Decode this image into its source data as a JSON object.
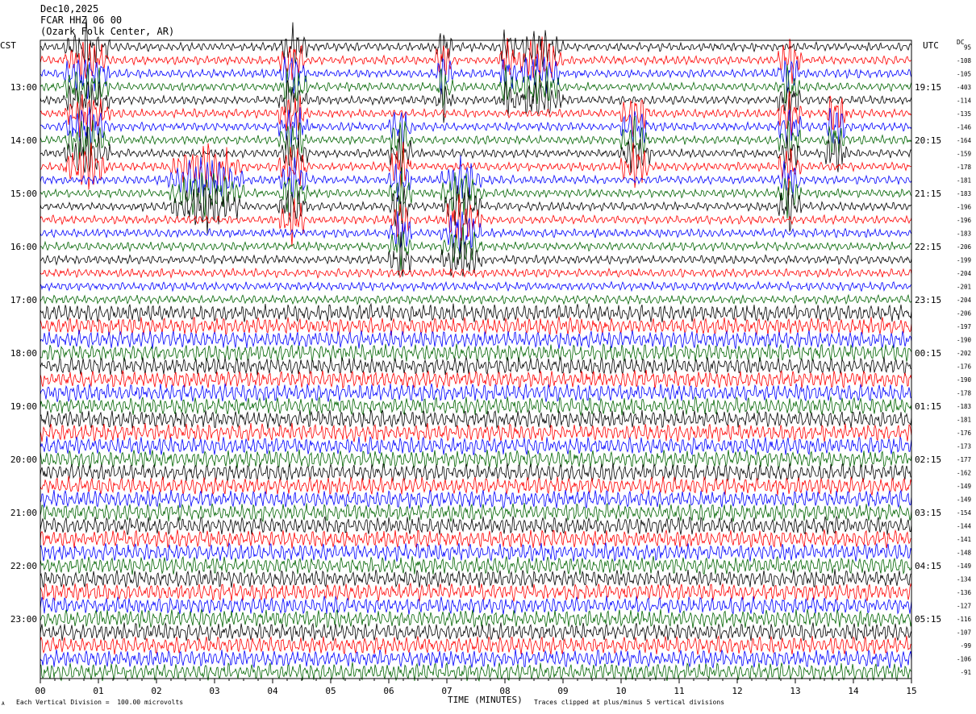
{
  "header": {
    "date": "Dec10,2025",
    "channel": "FCAR HHZ 06 00",
    "location": "(Ozark Folk Center, AR)"
  },
  "axes": {
    "left_title": "CST",
    "right_title": "UTC",
    "far_right_title": "DC",
    "x_title": "TIME (MINUTES)"
  },
  "footer": {
    "scale_note": "Each Vertical Division =  100.00 microvolts",
    "clip_note": "Traces clipped at plus/minus 5 vertical divisions",
    "corner_mark": "A"
  },
  "chart_data": {
    "type": "line",
    "title": "FCAR HHZ 06 00",
    "xlabel": "TIME (MINUTES)",
    "xlim": [
      0,
      15
    ],
    "x_ticks": [
      "00",
      "01",
      "02",
      "03",
      "04",
      "05",
      "06",
      "07",
      "08",
      "09",
      "10",
      "11",
      "12",
      "13",
      "14",
      "15"
    ],
    "trace_colors": [
      "#000000",
      "#ff0000",
      "#0000ff",
      "#006400"
    ],
    "rows_per_hour": 4,
    "first_row_time_cst": "12:15",
    "left_hour_labels": [
      "13:00",
      "14:00",
      "15:00",
      "16:00",
      "17:00",
      "18:00",
      "19:00",
      "20:00",
      "21:00",
      "22:00",
      "23:00"
    ],
    "right_hour_labels": [
      "19:15",
      "20:15",
      "21:15",
      "22:15",
      "23:15",
      "00:15",
      "01:15",
      "02:15",
      "03:15",
      "04:15",
      "05:15"
    ],
    "dc_offsets": [
      "95",
      "-108",
      "-105",
      "-403",
      "-114",
      "-135",
      "-146",
      "-164",
      "-159",
      "-178",
      "-181",
      "-183",
      "-196",
      "-196",
      "-183",
      "-206",
      "-199",
      "-204",
      "-201",
      "-204",
      "-206",
      "-197",
      "-190",
      "-202",
      "-176",
      "-190",
      "-178",
      "-183",
      "-181",
      "-176",
      "-173",
      "-177",
      "-162",
      "-149",
      "-149",
      "-154",
      "-144",
      "-141",
      "-148",
      "-149",
      "-134",
      "-136",
      "-127",
      "-116",
      "-107",
      "-99",
      "-106",
      "-91"
    ],
    "amplitude_profile": [
      {
        "from_row": 0,
        "to_row": 19,
        "level": "low"
      },
      {
        "from_row": 20,
        "to_row": 47,
        "level": "high"
      }
    ],
    "events": [
      {
        "row_start": 0,
        "row_end": 9,
        "minute_start": 0.4,
        "minute_end": 1.2,
        "color": "#006400"
      },
      {
        "row_start": 0,
        "row_end": 13,
        "minute_start": 4.1,
        "minute_end": 4.6,
        "color": "#006400"
      },
      {
        "row_start": 0,
        "row_end": 4,
        "minute_start": 6.8,
        "minute_end": 7.1,
        "color": "#0000ff"
      },
      {
        "row_start": 0,
        "row_end": 4,
        "minute_start": 7.9,
        "minute_end": 8.2,
        "color": "#0000ff"
      },
      {
        "row_start": 0,
        "row_end": 4,
        "minute_start": 8.2,
        "minute_end": 9.0,
        "color": "#0000ff"
      },
      {
        "row_start": 5,
        "row_end": 9,
        "minute_start": 10.0,
        "minute_end": 10.5,
        "color": "#0000ff"
      },
      {
        "row_start": 1,
        "row_end": 12,
        "minute_start": 12.7,
        "minute_end": 13.1,
        "color": "#0000ff"
      },
      {
        "row_start": 5,
        "row_end": 8,
        "minute_start": 13.5,
        "minute_end": 13.9,
        "color": "#0000ff"
      },
      {
        "row_start": 6,
        "row_end": 16,
        "minute_start": 6.0,
        "minute_end": 6.4,
        "color": "#006400"
      },
      {
        "row_start": 10,
        "row_end": 16,
        "minute_start": 6.9,
        "minute_end": 7.6,
        "color": "#006400"
      },
      {
        "row_start": 9,
        "row_end": 12,
        "minute_start": 2.2,
        "minute_end": 3.5,
        "color": "#0000ff"
      }
    ]
  }
}
